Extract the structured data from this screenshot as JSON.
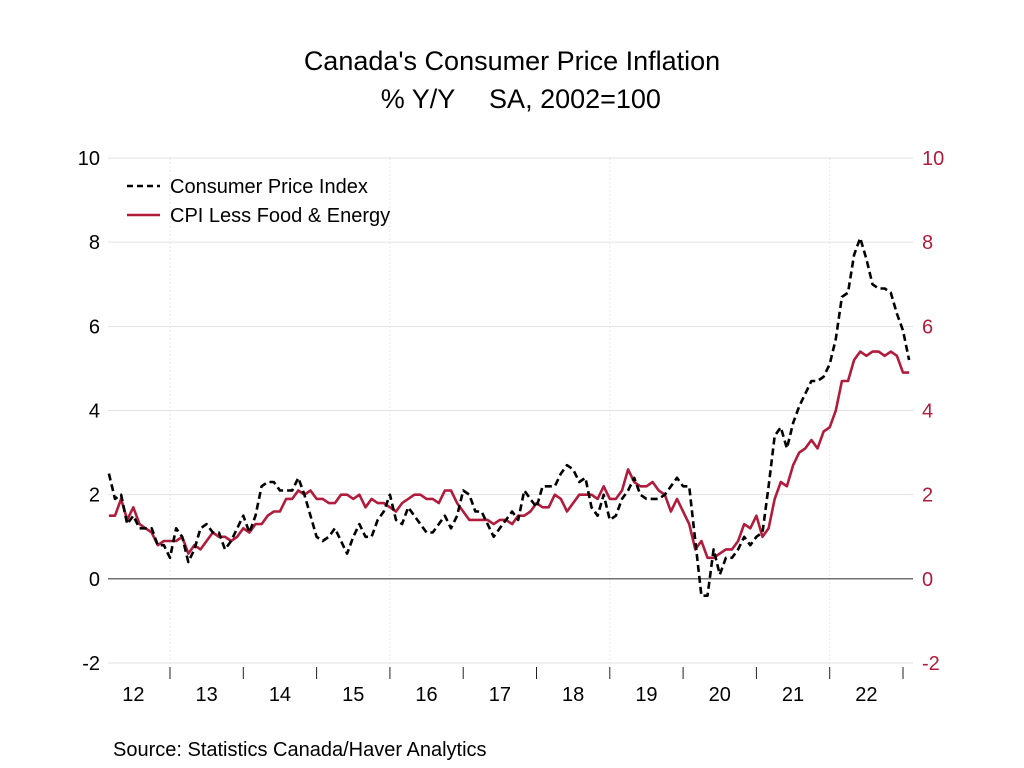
{
  "chart_data": {
    "type": "line",
    "title": "Canada's Consumer Price Inflation",
    "subtitle_left": "% Y/Y",
    "subtitle_right": "SA, 2002=100",
    "xlabel": "",
    "ylabel": "",
    "source": "Source:  Statistics Canada/Haver Analytics",
    "ylim": [
      -2,
      10
    ],
    "y_ticks": [
      "-2",
      "0",
      "2",
      "4",
      "6",
      "8",
      "10"
    ],
    "y_right_ticks": [
      "-2",
      "0",
      "2",
      "4",
      "6",
      "8",
      "10"
    ],
    "x_tick_labels": [
      "12",
      "13",
      "14",
      "15",
      "16",
      "17",
      "18",
      "19",
      "20",
      "21",
      "22"
    ],
    "x_range": [
      "2012-03",
      "2023-02"
    ],
    "frequency": "monthly",
    "grid": true,
    "legend_position": "top-left",
    "colors": {
      "cpi": "#000000",
      "core": "#b11c3c",
      "right_axis": "#b11c3c"
    },
    "series": [
      {
        "name": "Consumer Price Index",
        "style": "dashed",
        "start": "2012-03",
        "values": [
          2.5,
          1.9,
          2.0,
          1.3,
          1.5,
          1.2,
          1.2,
          1.2,
          0.8,
          0.8,
          0.5,
          1.2,
          1.0,
          0.4,
          0.7,
          1.2,
          1.3,
          1.1,
          1.1,
          0.7,
          0.9,
          1.2,
          1.5,
          1.1,
          1.5,
          2.2,
          2.3,
          2.3,
          2.1,
          2.1,
          2.1,
          2.4,
          2.0,
          1.5,
          1.0,
          0.9,
          1.0,
          1.2,
          0.9,
          0.6,
          1.0,
          1.3,
          1.0,
          1.0,
          1.4,
          1.6,
          2.0,
          1.4,
          1.3,
          1.7,
          1.5,
          1.3,
          1.1,
          1.1,
          1.3,
          1.5,
          1.2,
          1.5,
          2.1,
          2.0,
          1.6,
          1.6,
          1.3,
          1.0,
          1.2,
          1.4,
          1.6,
          1.4,
          2.1,
          1.9,
          1.7,
          2.2,
          2.2,
          2.2,
          2.5,
          2.7,
          2.6,
          2.3,
          2.4,
          1.7,
          1.5,
          2.0,
          1.4,
          1.5,
          1.9,
          2.1,
          2.4,
          2.0,
          1.9,
          1.9,
          1.9,
          2.0,
          2.2,
          2.4,
          2.2,
          2.2,
          0.9,
          -0.4,
          -0.4,
          0.7,
          0.1,
          0.5,
          0.5,
          0.7,
          1.0,
          0.8,
          1.0,
          1.1,
          2.2,
          3.4,
          3.6,
          3.1,
          3.7,
          4.1,
          4.4,
          4.7,
          4.7,
          4.8,
          5.1,
          5.7,
          6.7,
          6.8,
          7.7,
          8.1,
          7.6,
          7.0,
          6.9,
          6.9,
          6.8,
          6.3,
          5.9,
          5.2
        ]
      },
      {
        "name": "CPI Less Food & Energy",
        "style": "solid",
        "start": "2012-03",
        "values": [
          1.5,
          1.5,
          1.9,
          1.4,
          1.7,
          1.3,
          1.2,
          1.1,
          0.8,
          0.9,
          0.9,
          0.9,
          1.0,
          0.6,
          0.8,
          0.7,
          0.9,
          1.1,
          1.0,
          1.0,
          0.9,
          1.0,
          1.2,
          1.1,
          1.3,
          1.3,
          1.5,
          1.6,
          1.6,
          1.9,
          1.9,
          2.1,
          2.0,
          2.1,
          1.9,
          1.9,
          1.8,
          1.8,
          2.0,
          2.0,
          1.9,
          2.0,
          1.7,
          1.9,
          1.8,
          1.8,
          1.7,
          1.6,
          1.8,
          1.9,
          2.0,
          2.0,
          1.9,
          1.9,
          1.8,
          2.1,
          2.1,
          1.8,
          1.6,
          1.4,
          1.4,
          1.4,
          1.4,
          1.3,
          1.4,
          1.4,
          1.3,
          1.5,
          1.5,
          1.6,
          1.8,
          1.7,
          1.7,
          2.0,
          1.9,
          1.6,
          1.8,
          2.0,
          2.0,
          2.0,
          1.9,
          2.2,
          1.9,
          1.9,
          2.1,
          2.6,
          2.3,
          2.2,
          2.2,
          2.3,
          2.1,
          2.0,
          1.6,
          1.9,
          1.6,
          1.3,
          0.7,
          0.9,
          0.5,
          0.5,
          0.6,
          0.7,
          0.7,
          0.9,
          1.3,
          1.2,
          1.5,
          1.0,
          1.2,
          1.9,
          2.3,
          2.2,
          2.7,
          3.0,
          3.1,
          3.3,
          3.1,
          3.5,
          3.6,
          4.0,
          4.7,
          4.7,
          5.2,
          5.4,
          5.3,
          5.4,
          5.4,
          5.3,
          5.4,
          5.3,
          4.9,
          4.9
        ]
      }
    ]
  }
}
